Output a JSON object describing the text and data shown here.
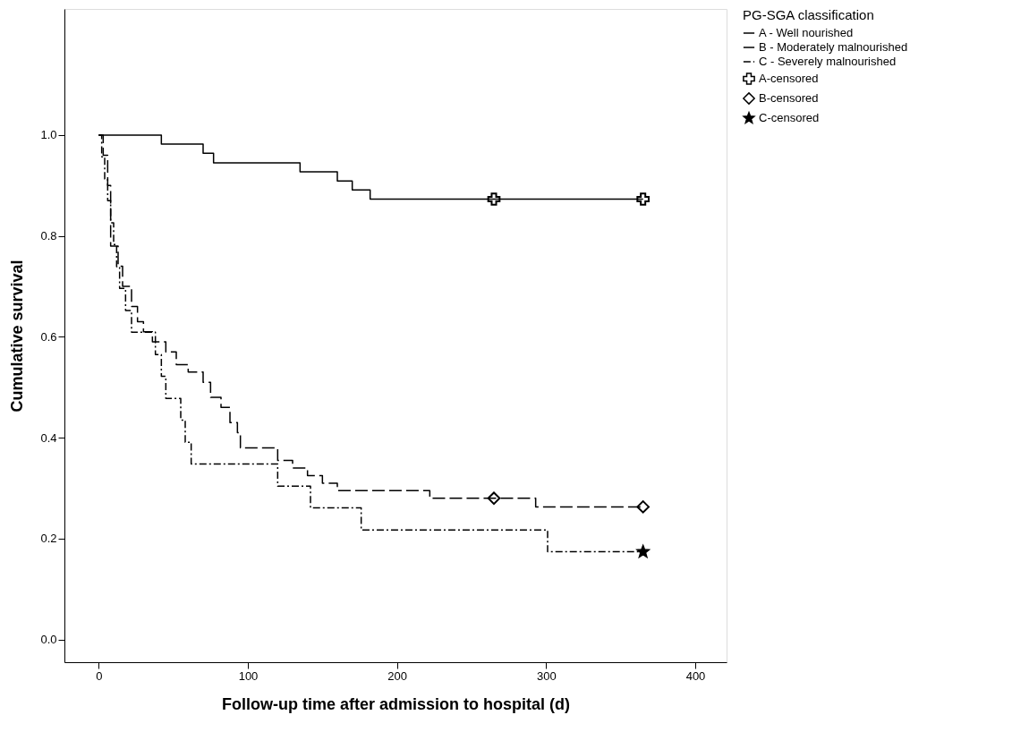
{
  "chart_data": {
    "type": "step",
    "xlabel": "Follow-up time after admission to hospital (d)",
    "ylabel": "Cumulative survival",
    "legend_title": "PG-SGA classification",
    "legend": "right",
    "grid": false,
    "xlim": [
      -23,
      421
    ],
    "xticks": [
      0,
      100,
      200,
      300,
      400
    ],
    "ylim": [
      -0.045,
      1.25
    ],
    "yticks": [
      {
        "value": 0,
        "label": "0.0"
      },
      0.2,
      0.4,
      0.6,
      0.8,
      {
        "value": 1,
        "label": "1.0"
      }
    ],
    "series": [
      {
        "name": "A - Well nourished",
        "color": "#000000",
        "line_style": "solid",
        "x": [
          0,
          42,
          70,
          77,
          135,
          160,
          170,
          182,
          365
        ],
        "values": [
          1,
          0.982,
          0.964,
          0.945,
          0.927,
          0.909,
          0.891,
          0.873,
          0.873
        ]
      },
      {
        "name": "B - Moderately malnourished",
        "color": "#000000",
        "line_style": "dashed",
        "x": [
          0,
          3,
          6,
          8,
          13,
          16,
          22,
          26,
          30,
          36,
          45,
          52,
          60,
          70,
          75,
          82,
          88,
          93,
          95,
          120,
          130,
          140,
          150,
          160,
          222,
          293,
          365
        ],
        "values": [
          1,
          0.96,
          0.9,
          0.78,
          0.74,
          0.7,
          0.66,
          0.63,
          0.61,
          0.59,
          0.57,
          0.545,
          0.53,
          0.51,
          0.48,
          0.46,
          0.43,
          0.41,
          0.38,
          0.355,
          0.34,
          0.325,
          0.31,
          0.295,
          0.28,
          0.263,
          0.263
        ]
      },
      {
        "name": "C - Severely  malnourished",
        "color": "#000000",
        "line_style": "dotted",
        "x": [
          0,
          2,
          4,
          6,
          8,
          10,
          12,
          14,
          18,
          22,
          38,
          42,
          45,
          55,
          58,
          62,
          120,
          142,
          176,
          301,
          365
        ],
        "values": [
          1,
          0.957,
          0.913,
          0.87,
          0.826,
          0.783,
          0.739,
          0.696,
          0.652,
          0.609,
          0.565,
          0.522,
          0.478,
          0.435,
          0.391,
          0.348,
          0.304,
          0.261,
          0.217,
          0.174,
          0.174
        ]
      },
      {
        "name": "A-censored",
        "type": "scatter",
        "color": "#000000",
        "marker": "cross",
        "x": [
          265,
          365
        ],
        "values": [
          0.873,
          0.873
        ]
      },
      {
        "name": "B-censored",
        "type": "scatter",
        "color": "#000000",
        "marker": "diamond",
        "x": [
          265,
          365
        ],
        "values": [
          0.28,
          0.263
        ]
      },
      {
        "name": "C-censored",
        "type": "scatter",
        "color": "#000000",
        "marker": "star",
        "x": [
          365
        ],
        "values": [
          0.174
        ]
      }
    ]
  }
}
